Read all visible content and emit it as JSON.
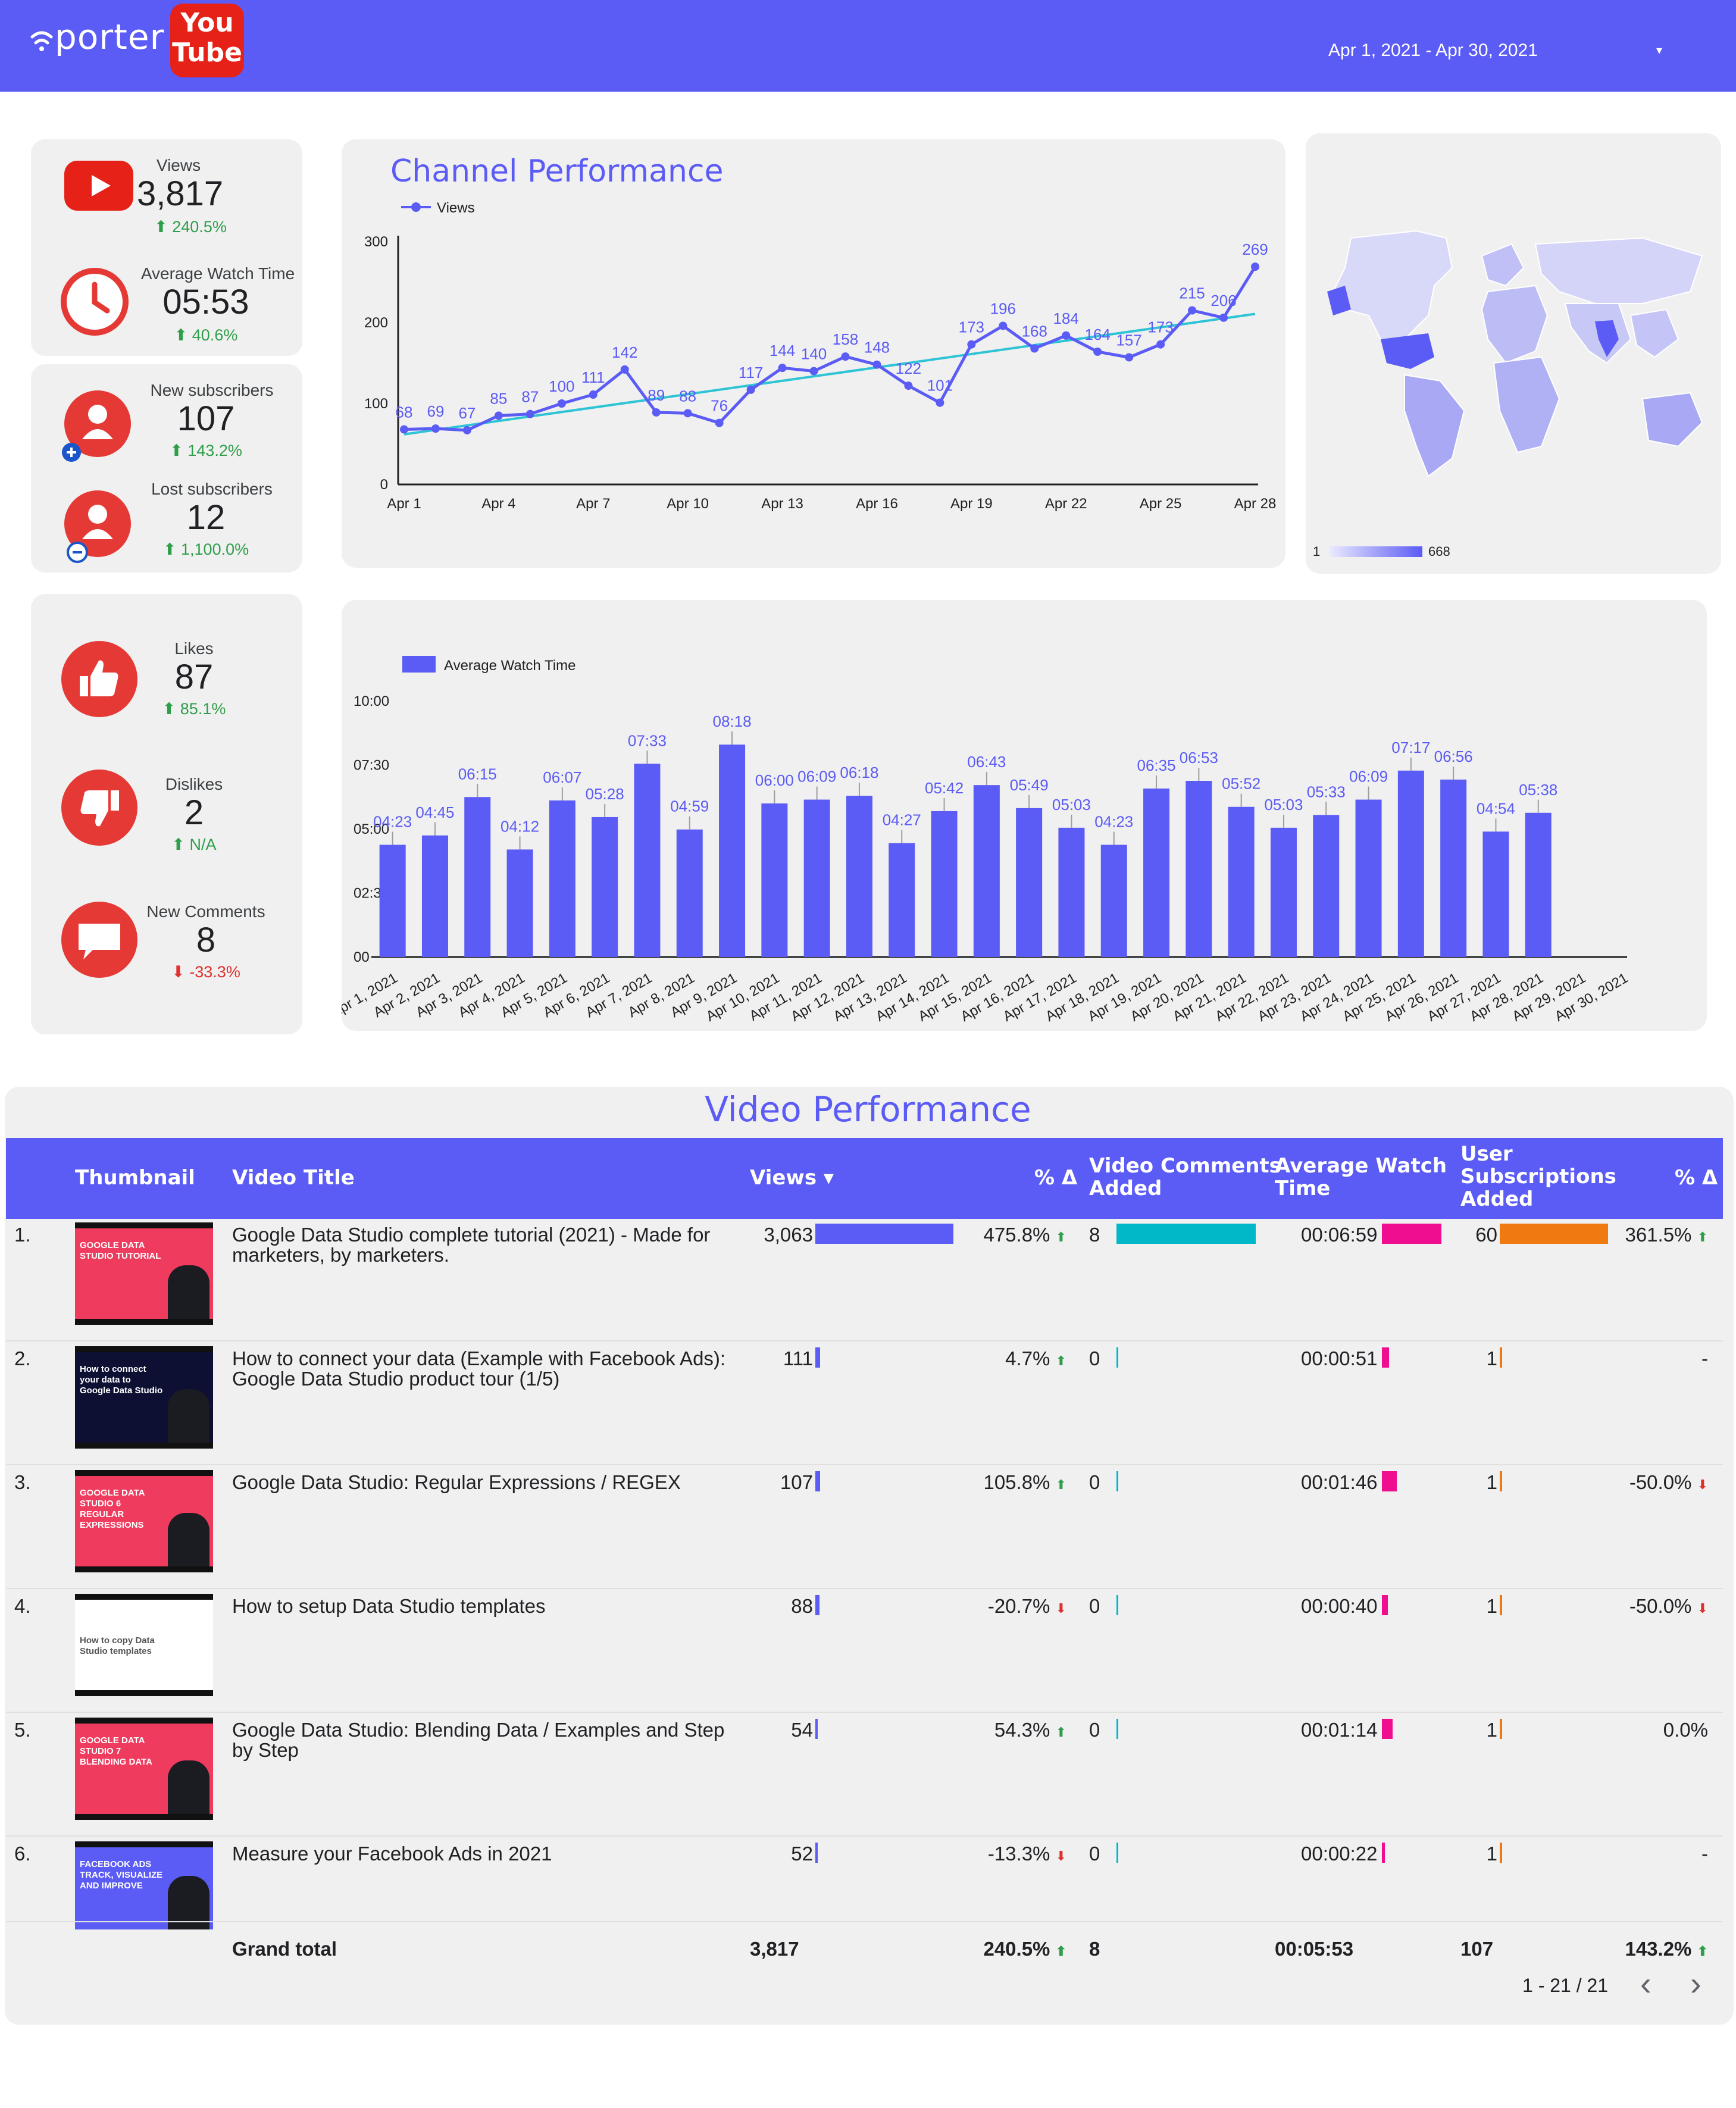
{
  "header": {
    "brand": "porter",
    "yt_line1": "You",
    "yt_line2": "Tube",
    "date_range": "Apr 1, 2021 - Apr 30, 2021",
    "caret": "▾"
  },
  "kpis": {
    "views": {
      "label": "Views",
      "value": "3,817",
      "delta": "⬆ 240.5%"
    },
    "avg_watch": {
      "label": "Average Watch Time",
      "value": "05:53",
      "delta": "⬆ 40.6%"
    },
    "new_subs": {
      "label": "New subscribers",
      "value": "107",
      "delta": "⬆ 143.2%"
    },
    "lost_subs": {
      "label": "Lost subscribers",
      "value": "12",
      "delta": "⬆ 1,100.0%"
    },
    "likes": {
      "label": "Likes",
      "value": "87",
      "delta": "⬆ 85.1%"
    },
    "dislikes": {
      "label": "Dislikes",
      "value": "2",
      "delta": "⬆ N/A"
    },
    "comments": {
      "label": "New Comments",
      "value": "8",
      "delta": "⬇ -33.3%"
    }
  },
  "colors": {
    "brand": "#5b5bf5",
    "youtube_red": "#e53935",
    "trend": "#2ec4d6",
    "up": "#2e9e4a",
    "down": "#e0302e",
    "comments_bar": "#00b8c8",
    "watch_bar": "#ee0e8f",
    "subs_bar": "#f07a12"
  },
  "map": {
    "legend_min": "1",
    "legend_max": "668"
  },
  "chart_data": [
    {
      "type": "line",
      "title": "Channel Performance",
      "series": [
        {
          "name": "Views",
          "values": [
            68,
            69,
            67,
            85,
            87,
            100,
            111,
            142,
            89,
            88,
            76,
            117,
            144,
            140,
            158,
            148,
            122,
            101,
            173,
            196,
            168,
            184,
            164,
            157,
            173,
            215,
            206,
            269
          ]
        }
      ],
      "x": [
        "Apr 1",
        "Apr 2",
        "Apr 3",
        "Apr 4",
        "Apr 5",
        "Apr 6",
        "Apr 7",
        "Apr 8",
        "Apr 9",
        "Apr 10",
        "Apr 11",
        "Apr 12",
        "Apr 13",
        "Apr 14",
        "Apr 15",
        "Apr 16",
        "Apr 17",
        "Apr 18",
        "Apr 19",
        "Apr 20",
        "Apr 21",
        "Apr 22",
        "Apr 23",
        "Apr 24",
        "Apr 25",
        "Apr 26",
        "Apr 27",
        "Apr 28"
      ],
      "x_ticks": [
        "Apr 1",
        "Apr 4",
        "Apr 7",
        "Apr 10",
        "Apr 13",
        "Apr 16",
        "Apr 19",
        "Apr 22",
        "Apr 25",
        "Apr 28"
      ],
      "y_ticks": [
        "0",
        "100",
        "200",
        "300"
      ],
      "ylim": [
        0,
        300
      ],
      "trendline": true,
      "legend": "top-left"
    },
    {
      "type": "bar",
      "series": [
        {
          "name": "Average Watch Time",
          "values": [
            "04:23",
            "04:45",
            "06:15",
            "04:12",
            "06:07",
            "05:28",
            "07:33",
            "04:59",
            "08:18",
            "06:00",
            "06:09",
            "06:18",
            "04:27",
            "05:42",
            "06:43",
            "05:49",
            "05:03",
            "04:23",
            "06:35",
            "06:53",
            "05:52",
            "05:03",
            "05:33",
            "06:09",
            "07:17",
            "06:56",
            "04:54",
            "05:38",
            "",
            ""
          ]
        }
      ],
      "categories": [
        "Apr 1, 2021",
        "Apr 2, 2021",
        "Apr 3, 2021",
        "Apr 4, 2021",
        "Apr 5, 2021",
        "Apr 6, 2021",
        "Apr 7, 2021",
        "Apr 8, 2021",
        "Apr 9, 2021",
        "Apr 10, 2021",
        "Apr 11, 2021",
        "Apr 12, 2021",
        "Apr 13, 2021",
        "Apr 14, 2021",
        "Apr 15, 2021",
        "Apr 16, 2021",
        "Apr 17, 2021",
        "Apr 18, 2021",
        "Apr 19, 2021",
        "Apr 20, 2021",
        "Apr 21, 2021",
        "Apr 22, 2021",
        "Apr 23, 2021",
        "Apr 24, 2021",
        "Apr 25, 2021",
        "Apr 26, 2021",
        "Apr 27, 2021",
        "Apr 28, 2021",
        "Apr 29, 2021",
        "Apr 30, 2021"
      ],
      "y_ticks": [
        "00",
        "02:30",
        "05:00",
        "07:30",
        "10:00"
      ],
      "ylim": [
        "00:00",
        "10:00"
      ],
      "legend": "top-left"
    }
  ],
  "table": {
    "title": "Video Performance",
    "headers": {
      "thumbnail": "Thumbnail",
      "video_title": "Video Title",
      "views": "Views ▾",
      "pct1": "% Δ",
      "comments_l1": "Video Comments",
      "comments_l2": "Added",
      "watch_l1": "Average Watch",
      "watch_l2": "Time",
      "subs_l1": "User",
      "subs_l2": "Subscriptions",
      "subs_l3": "Added",
      "pct2": "% Δ"
    },
    "rows": [
      {
        "idx": "1.",
        "title_l1": "Google Data Studio complete tutorial (2021) - Made for",
        "title_l2": "marketers, by marketers.",
        "views": "3,063",
        "views_n": 3063,
        "pct1": "475.8% ⬆",
        "pct1_dir": "up",
        "comments": "8",
        "comments_n": 8,
        "watch": "00:06:59",
        "watch_s": 419,
        "subs": "60",
        "subs_n": 60,
        "pct2": "361.5% ⬆",
        "pct2_dir": "up",
        "thumb_text": "GOOGLE DATA STUDIO TUTORIAL"
      },
      {
        "idx": "2.",
        "title_l1": "How to connect your data (Example with Facebook Ads):",
        "title_l2": "Google Data Studio product tour (1/5)",
        "views": "111",
        "views_n": 111,
        "pct1": "4.7% ⬆",
        "pct1_dir": "up",
        "comments": "0",
        "comments_n": 0,
        "watch": "00:00:51",
        "watch_s": 51,
        "subs": "1",
        "subs_n": 1,
        "pct2": "-",
        "pct2_dir": "none",
        "thumb_text": "How to connect your data to Google Data Studio"
      },
      {
        "idx": "3.",
        "title_l1": "Google Data Studio: Regular Expressions / REGEX",
        "title_l2": "",
        "views": "107",
        "views_n": 107,
        "pct1": "105.8% ⬆",
        "pct1_dir": "up",
        "comments": "0",
        "comments_n": 0,
        "watch": "00:01:46",
        "watch_s": 106,
        "subs": "1",
        "subs_n": 1,
        "pct2": "-50.0% ⬇",
        "pct2_dir": "down",
        "thumb_text": "GOOGLE DATA STUDIO 6 REGULAR EXPRESSIONS"
      },
      {
        "idx": "4.",
        "title_l1": "How to setup Data Studio templates",
        "title_l2": "",
        "views": "88",
        "views_n": 88,
        "pct1": "-20.7% ⬇",
        "pct1_dir": "down",
        "comments": "0",
        "comments_n": 0,
        "watch": "00:00:40",
        "watch_s": 40,
        "subs": "1",
        "subs_n": 1,
        "pct2": "-50.0% ⬇",
        "pct2_dir": "down",
        "thumb_text": "How to copy Data Studio templates"
      },
      {
        "idx": "5.",
        "title_l1": "Google Data Studio: Blending Data / Examples and Step",
        "title_l2": "by Step",
        "views": "54",
        "views_n": 54,
        "pct1": "54.3% ⬆",
        "pct1_dir": "up",
        "comments": "0",
        "comments_n": 0,
        "watch": "00:01:14",
        "watch_s": 74,
        "subs": "1",
        "subs_n": 1,
        "pct2": "0.0%",
        "pct2_dir": "none",
        "thumb_text": "GOOGLE DATA STUDIO 7 BLENDING DATA"
      },
      {
        "idx": "6.",
        "title_l1": "Measure your Facebook Ads in 2021",
        "title_l2": "",
        "views": "52",
        "views_n": 52,
        "pct1": "-13.3% ⬇",
        "pct1_dir": "down",
        "comments": "0",
        "comments_n": 0,
        "watch": "00:00:22",
        "watch_s": 22,
        "subs": "1",
        "subs_n": 1,
        "pct2": "-",
        "pct2_dir": "none",
        "thumb_text": "FACEBOOK ADS TRACK, VISUALIZE AND IMPROVE"
      }
    ],
    "grand_total": {
      "label": "Grand total",
      "views": "3,817",
      "pct1": "240.5% ⬆",
      "comments": "8",
      "watch": "00:05:53",
      "subs": "107",
      "pct2": "143.2% ⬆"
    },
    "pagination": {
      "range": "1 - 21 / 21",
      "prev": "‹",
      "next": "›"
    }
  }
}
